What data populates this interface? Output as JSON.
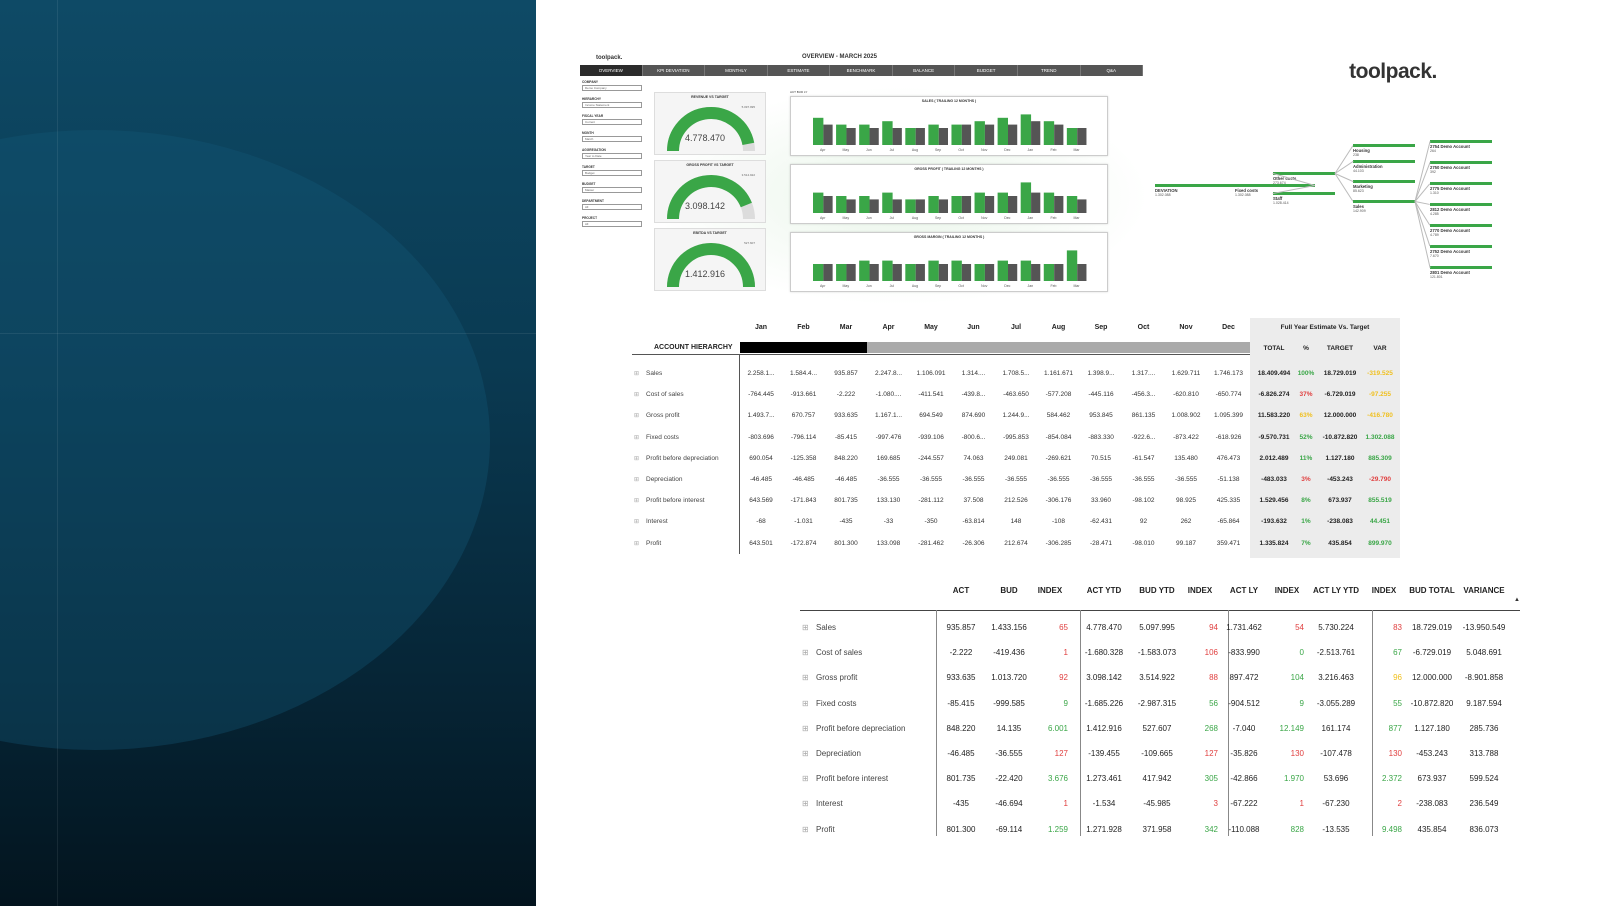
{
  "dashboard": {
    "brand": "toolpack.",
    "title": "OVERVIEW - MARCH 2025",
    "tabs": [
      "OVERVIEW",
      "KPI DEVIATION",
      "MONTHLY",
      "ESTIMATE",
      "BENCHMARK",
      "BALANCE",
      "BUDGET",
      "TREND",
      "Q&A"
    ],
    "active_tab": 0,
    "filters": [
      {
        "label": "COMPANY",
        "value": "Demo Company"
      },
      {
        "label": "HIERARCHY",
        "value": "Income Statement"
      },
      {
        "label": "FISCAL YEAR",
        "value": "Current"
      },
      {
        "label": "MONTH",
        "value": "March"
      },
      {
        "label": "AGGREGATION",
        "value": "Year to Date"
      },
      {
        "label": "TARGET",
        "value": "Budget"
      },
      {
        "label": "BUDGET",
        "value": "Master"
      },
      {
        "label": "DEPARTMENT",
        "value": "All"
      },
      {
        "label": "PROJECT",
        "value": "All"
      }
    ],
    "gauges": [
      {
        "title": "REVENUE VS TARGET",
        "value": "4.778.470",
        "target": "5.097.995",
        "fill": 0.94
      },
      {
        "title": "GROSS PROFIT VS TARGET",
        "value": "3.098.142",
        "target": "3.514.922",
        "fill": 0.88
      },
      {
        "title": "EBITDA VS TARGET",
        "value": "1.412.916",
        "target": "527.607",
        "fill": 1.0
      }
    ],
    "legend": "ACT BUD LY",
    "charts": [
      {
        "title": "SALES ( TRAILING 12 MONTHS )",
        "act": [
          8,
          6,
          6,
          7,
          5,
          6,
          6,
          7,
          8,
          9,
          7,
          5
        ],
        "bud": [
          6,
          5,
          5,
          5,
          5,
          5,
          6,
          6,
          6,
          7,
          6,
          5
        ]
      },
      {
        "title": "GROSS PROFIT ( TRAILING 12 MONTHS )",
        "act": [
          6,
          5,
          5,
          6,
          4,
          5,
          5,
          6,
          6,
          9,
          6,
          5
        ],
        "bud": [
          5,
          4,
          4,
          4,
          4,
          4,
          5,
          5,
          5,
          6,
          5,
          4
        ]
      },
      {
        "title": "GROSS MARGIN ( TRAILING 12 MONTHS )",
        "act": [
          5,
          5,
          6,
          6,
          5,
          6,
          6,
          5,
          6,
          6,
          5,
          9
        ],
        "bud": [
          5,
          5,
          5,
          5,
          5,
          5,
          5,
          5,
          5,
          5,
          5,
          5
        ]
      }
    ],
    "chart_months": [
      "Apr",
      "May",
      "Jun",
      "Jul",
      "Aug",
      "Sep",
      "Oct",
      "Nov",
      "Dec",
      "Jan",
      "Feb",
      "Mar"
    ]
  },
  "logo": "toolpack.",
  "tree": {
    "root": {
      "label": "DEVIATION",
      "value": "1.302.088"
    },
    "level1": {
      "label": "Fixed costs",
      "value": "1.302.088"
    },
    "level2": [
      {
        "label": "Other costs",
        "value": "273.674"
      },
      {
        "label": "Staff",
        "value": "1.028.414"
      }
    ],
    "level3": [
      {
        "label": "Housing",
        "value": "238"
      },
      {
        "label": "Administration",
        "value": "44.103"
      },
      {
        "label": "Marketing",
        "value": "85.623"
      },
      {
        "label": "Sales",
        "value": "142.909"
      }
    ],
    "level4": [
      {
        "label": "2754 Demo Account",
        "value": "264"
      },
      {
        "label": "2750 Demo Account",
        "value": "392"
      },
      {
        "label": "2775 Demo Account",
        "value": "1.310"
      },
      {
        "label": "2812 Demo Account",
        "value": "4.285"
      },
      {
        "label": "2770 Demo Account",
        "value": "4.789"
      },
      {
        "label": "2752 Demo Account",
        "value": "7.670"
      },
      {
        "label": "2801 Demo Account",
        "value": "121.801"
      }
    ]
  },
  "monthly_table": {
    "months": [
      "Jan",
      "Feb",
      "Mar",
      "Apr",
      "May",
      "Jun",
      "Jul",
      "Aug",
      "Sep",
      "Oct",
      "Nov",
      "Dec"
    ],
    "hierarchy_label": "ACCOUNT HIERARCHY",
    "fy_title": "Full Year Estimate Vs. Target",
    "fy_cols": [
      "TOTAL",
      "%",
      "TARGET",
      "VAR"
    ],
    "rows": [
      {
        "label": "Sales",
        "values": [
          "2.258.1...",
          "1.584.4...",
          "935.857",
          "2.247.8...",
          "1.106.091",
          "1.314....",
          "1.708.5...",
          "1.161.671",
          "1.398.9...",
          "1.317....",
          "1.629.711",
          "1.746.173"
        ],
        "total": "18.409.494",
        "pct": "100%",
        "pct_color": "#3aa647",
        "target": "18.729.019",
        "var": "-319.525",
        "var_color": "#f0c020"
      },
      {
        "label": "Cost of sales",
        "values": [
          "-764.445",
          "-913.661",
          "-2.222",
          "-1.080....",
          "-411.541",
          "-439.8...",
          "-463.650",
          "-577.208",
          "-445.116",
          "-456.3...",
          "-620.810",
          "-650.774"
        ],
        "total": "-6.826.274",
        "pct": "37%",
        "pct_color": "#e04040",
        "target": "-6.729.019",
        "var": "-97.255",
        "var_color": "#f0c020"
      },
      {
        "label": "Gross profit",
        "values": [
          "1.493.7...",
          "670.757",
          "933.635",
          "1.167.1...",
          "694.549",
          "874.690",
          "1.244.9...",
          "584.462",
          "953.845",
          "861.135",
          "1.008.902",
          "1.095.399"
        ],
        "total": "11.583.220",
        "pct": "63%",
        "pct_color": "#f0c020",
        "target": "12.000.000",
        "var": "-416.780",
        "var_color": "#f0c020"
      },
      {
        "label": "Fixed costs",
        "values": [
          "-803.696",
          "-796.114",
          "-85.415",
          "-997.476",
          "-939.106",
          "-800.6...",
          "-995.853",
          "-854.084",
          "-883.330",
          "-922.6...",
          "-873.422",
          "-618.926"
        ],
        "total": "-9.570.731",
        "pct": "52%",
        "pct_color": "#3aa647",
        "target": "-10.872.820",
        "var": "1.302.088",
        "var_color": "#3aa647"
      },
      {
        "label": "Profit before depreciation",
        "values": [
          "690.054",
          "-125.358",
          "848.220",
          "169.685",
          "-244.557",
          "74.063",
          "249.081",
          "-269.621",
          "70.515",
          "-61.547",
          "135.480",
          "476.473"
        ],
        "total": "2.012.489",
        "pct": "11%",
        "pct_color": "#3aa647",
        "target": "1.127.180",
        "var": "885.309",
        "var_color": "#3aa647"
      },
      {
        "label": "Depreciation",
        "values": [
          "-46.485",
          "-46.485",
          "-46.485",
          "-36.555",
          "-36.555",
          "-36.555",
          "-36.555",
          "-36.555",
          "-36.555",
          "-36.555",
          "-36.555",
          "-51.138"
        ],
        "total": "-483.033",
        "pct": "3%",
        "pct_color": "#e04040",
        "target": "-453.243",
        "var": "-29.790",
        "var_color": "#e04040"
      },
      {
        "label": "Profit before interest",
        "values": [
          "643.569",
          "-171.843",
          "801.735",
          "133.130",
          "-281.112",
          "37.508",
          "212.526",
          "-306.176",
          "33.960",
          "-98.102",
          "98.925",
          "425.335"
        ],
        "total": "1.529.456",
        "pct": "8%",
        "pct_color": "#3aa647",
        "target": "673.937",
        "var": "855.519",
        "var_color": "#3aa647"
      },
      {
        "label": "Interest",
        "values": [
          "-68",
          "-1.031",
          "-435",
          "-33",
          "-350",
          "-63.814",
          "148",
          "-108",
          "-62.431",
          "92",
          "262",
          "-65.864"
        ],
        "total": "-193.632",
        "pct": "1%",
        "pct_color": "#3aa647",
        "target": "-238.083",
        "var": "44.451",
        "var_color": "#3aa647"
      },
      {
        "label": "Profit",
        "values": [
          "643.501",
          "-172.874",
          "801.300",
          "133.098",
          "-281.462",
          "-26.306",
          "212.674",
          "-306.285",
          "-28.471",
          "-98.010",
          "99.187",
          "359.471"
        ],
        "total": "1.335.824",
        "pct": "7%",
        "pct_color": "#3aa647",
        "target": "435.854",
        "var": "899.970",
        "var_color": "#3aa647"
      }
    ]
  },
  "bottom_table": {
    "headers": [
      "ACT",
      "BUD",
      "INDEX",
      "ACT YTD",
      "BUD YTD",
      "INDEX",
      "ACT LY",
      "INDEX",
      "ACT LY YTD",
      "INDEX",
      "BUD TOTAL",
      "VARIANCE"
    ],
    "sort_indicator": "▲",
    "rows": [
      {
        "label": "Sales",
        "cells": [
          "935.857",
          "1.433.156",
          "65",
          "4.778.470",
          "5.097.995",
          "94",
          "1.731.462",
          "54",
          "5.730.224",
          "83",
          "18.729.019",
          "-13.950.549"
        ],
        "index_colors": [
          "#e04040",
          "#e04040",
          "#e04040",
          "#e04040"
        ]
      },
      {
        "label": "Cost of sales",
        "cells": [
          "-2.222",
          "-419.436",
          "1",
          "-1.680.328",
          "-1.583.073",
          "106",
          "-833.990",
          "0",
          "-2.513.761",
          "67",
          "-6.729.019",
          "5.048.691"
        ],
        "index_colors": [
          "#e04040",
          "#e04040",
          "#3aa647",
          "#3aa647"
        ]
      },
      {
        "label": "Gross profit",
        "cells": [
          "933.635",
          "1.013.720",
          "92",
          "3.098.142",
          "3.514.922",
          "88",
          "897.472",
          "104",
          "3.216.463",
          "96",
          "12.000.000",
          "-8.901.858"
        ],
        "index_colors": [
          "#e04040",
          "#e04040",
          "#3aa647",
          "#f0c020"
        ]
      },
      {
        "label": "Fixed costs",
        "cells": [
          "-85.415",
          "-999.585",
          "9",
          "-1.685.226",
          "-2.987.315",
          "56",
          "-904.512",
          "9",
          "-3.055.289",
          "55",
          "-10.872.820",
          "9.187.594"
        ],
        "index_colors": [
          "#3aa647",
          "#3aa647",
          "#3aa647",
          "#3aa647"
        ]
      },
      {
        "label": "Profit before depreciation",
        "cells": [
          "848.220",
          "14.135",
          "6.001",
          "1.412.916",
          "527.607",
          "268",
          "-7.040",
          "12.149",
          "161.174",
          "877",
          "1.127.180",
          "285.736"
        ],
        "index_colors": [
          "#3aa647",
          "#3aa647",
          "#3aa647",
          "#3aa647"
        ]
      },
      {
        "label": "Depreciation",
        "cells": [
          "-46.485",
          "-36.555",
          "127",
          "-139.455",
          "-109.665",
          "127",
          "-35.826",
          "130",
          "-107.478",
          "130",
          "-453.243",
          "313.788"
        ],
        "index_colors": [
          "#e04040",
          "#e04040",
          "#e04040",
          "#e04040"
        ]
      },
      {
        "label": "Profit before interest",
        "cells": [
          "801.735",
          "-22.420",
          "3.676",
          "1.273.461",
          "417.942",
          "305",
          "-42.866",
          "1.970",
          "53.696",
          "2.372",
          "673.937",
          "599.524"
        ],
        "index_colors": [
          "#3aa647",
          "#3aa647",
          "#3aa647",
          "#3aa647"
        ]
      },
      {
        "label": "Interest",
        "cells": [
          "-435",
          "-46.694",
          "1",
          "-1.534",
          "-45.985",
          "3",
          "-67.222",
          "1",
          "-67.230",
          "2",
          "-238.083",
          "236.549"
        ],
        "index_colors": [
          "#e04040",
          "#e04040",
          "#e04040",
          "#e04040"
        ]
      },
      {
        "label": "Profit",
        "cells": [
          "801.300",
          "-69.114",
          "1.259",
          "1.271.928",
          "371.958",
          "342",
          "-110.088",
          "828",
          "-13.535",
          "9.498",
          "435.854",
          "836.073"
        ],
        "index_colors": [
          "#3aa647",
          "#3aa647",
          "#3aa647",
          "#3aa647"
        ]
      }
    ]
  },
  "colors": {
    "accent_green": "#3aa647",
    "bud_gray": "#555555",
    "neg_red": "#e04040",
    "warn_yellow": "#f0c020",
    "panel_dark": "#0a3a52"
  }
}
